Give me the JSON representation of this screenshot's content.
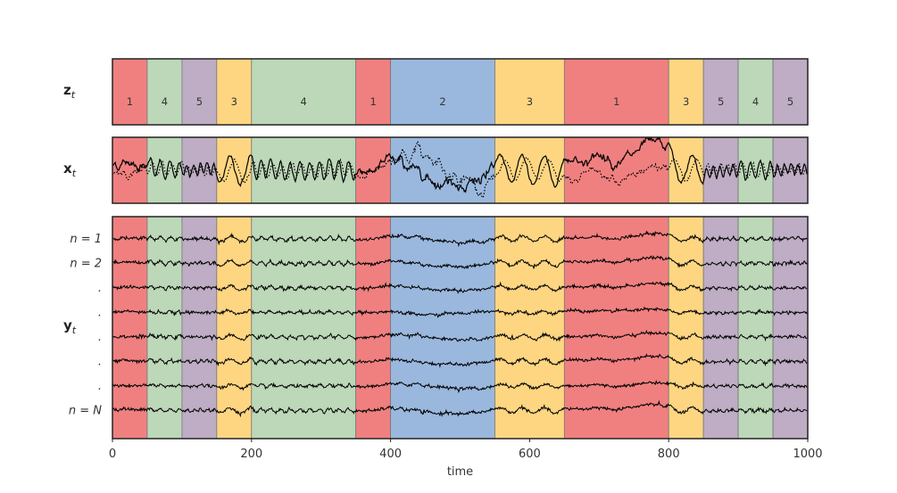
{
  "chart_data": {
    "type": "line",
    "xlabel": "time",
    "xlim": [
      0,
      1000
    ],
    "xticks": [
      "0",
      "200",
      "400",
      "600",
      "800",
      "1000"
    ],
    "xtick_values": [
      0,
      200,
      400,
      600,
      800,
      1000
    ],
    "state_colors": {
      "1": "#f08080",
      "2": "#9ab8dd",
      "3": "#fed682",
      "4": "#bcd8b8",
      "5": "#beadc4"
    },
    "segments": [
      {
        "start": 0,
        "end": 50,
        "state": "1"
      },
      {
        "start": 50,
        "end": 100,
        "state": "4"
      },
      {
        "start": 100,
        "end": 150,
        "state": "5"
      },
      {
        "start": 150,
        "end": 200,
        "state": "3"
      },
      {
        "start": 200,
        "end": 350,
        "state": "4"
      },
      {
        "start": 350,
        "end": 400,
        "state": "1"
      },
      {
        "start": 400,
        "end": 550,
        "state": "2"
      },
      {
        "start": 550,
        "end": 650,
        "state": "3"
      },
      {
        "start": 650,
        "end": 800,
        "state": "1"
      },
      {
        "start": 800,
        "end": 850,
        "state": "3"
      },
      {
        "start": 850,
        "end": 900,
        "state": "5"
      },
      {
        "start": 900,
        "end": 950,
        "state": "4"
      },
      {
        "start": 950,
        "end": 1000,
        "state": "5"
      }
    ],
    "panels": [
      {
        "id": "z",
        "label": "z",
        "subscript": "t"
      },
      {
        "id": "x",
        "label": "x",
        "subscript": "t",
        "series": [
          {
            "style": "solid"
          },
          {
            "style": "dotted"
          }
        ]
      },
      {
        "id": "y",
        "label": "y",
        "subscript": "t",
        "channel_labels": [
          "n = 1",
          "n = 2",
          ".",
          ".",
          ".",
          ".",
          ".",
          "n = N"
        ],
        "channels": 8
      }
    ],
    "state_dynamics": {
      "1": {
        "kind": "drift"
      },
      "2": {
        "kind": "slow-noise"
      },
      "3": {
        "kind": "slow-oscillation"
      },
      "4": {
        "kind": "oscillation"
      },
      "5": {
        "kind": "fast-oscillation"
      }
    }
  }
}
